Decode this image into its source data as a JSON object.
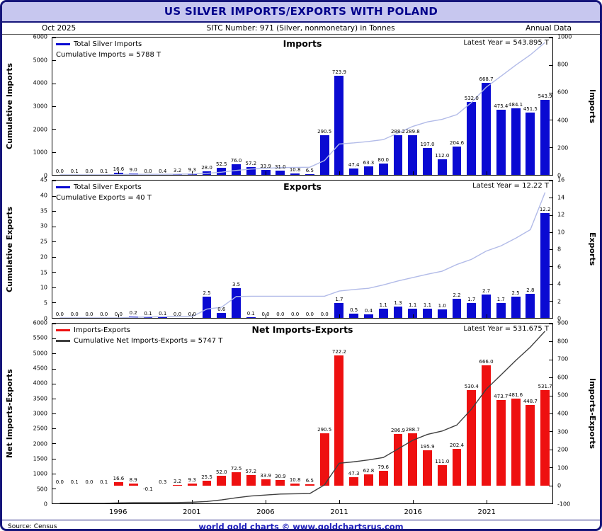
{
  "header": {
    "title": "US SILVER IMPORTS/EXPORTS WITH POLAND",
    "date_label": "Oct  2025",
    "sitc_label": "SITC Number: 971 (Silver, nonmonetary) in Tonnes",
    "frequency_label": "Annual Data"
  },
  "footer": {
    "source": "Source: Census",
    "credit": "world gold charts © www.goldchartsrus.com"
  },
  "colors": {
    "import_bar": "#0a0ad2",
    "net_bar": "#ee1010",
    "cumulative_light_line": "#b2bbe8",
    "cumulative_dark_line": "#3f3f3f",
    "title_bg": "#c7c7ef",
    "title_fg": "#00008b",
    "frame_border": "#15157a",
    "credit_fg": "#2121bd"
  },
  "years": [
    1992,
    1993,
    1994,
    1995,
    1996,
    1997,
    1998,
    1999,
    2000,
    2001,
    2002,
    2003,
    2004,
    2005,
    2006,
    2007,
    2008,
    2009,
    2010,
    2011,
    2012,
    2013,
    2014,
    2015,
    2016,
    2017,
    2018,
    2019,
    2020,
    2021,
    2022,
    2023,
    2024,
    2025
  ],
  "x_ticks": [
    1996,
    2001,
    2006,
    2011,
    2016,
    2021
  ],
  "chart_data": [
    {
      "type": "bar",
      "panel_title": "Imports",
      "latest_label": "Latest Year = 543.895 T",
      "legend_rows": [
        {
          "color": "#0a0ad2",
          "label": "Total Silver Imports"
        },
        {
          "color": null,
          "label": "Cumulative Imports = 5788 T"
        }
      ],
      "left_axis": {
        "label": "Cumulative Imports",
        "min": 0,
        "max": 6000,
        "step": 1000
      },
      "right_axis": {
        "label": "Imports",
        "min": 0,
        "max": 1000,
        "step": 200
      },
      "bar_color": "#0a0ad2",
      "line_color": "#b2bbe8",
      "values": [
        0.0,
        0.1,
        0.0,
        0.1,
        16.6,
        9.0,
        0.0,
        0.4,
        3.2,
        9.3,
        28.0,
        52.5,
        76.0,
        57.2,
        33.9,
        31.0,
        10.8,
        6.5,
        290.5,
        723.9,
        47.4,
        63.3,
        80.0,
        288.2,
        289.8,
        197.0,
        112.0,
        204.6,
        532.0,
        668.7,
        475.4,
        484.1,
        451.5,
        543.9
      ]
    },
    {
      "type": "bar",
      "panel_title": "Exports",
      "latest_label": "Latest Year = 12.22 T",
      "legend_rows": [
        {
          "color": "#0a0ad2",
          "label": "Total Silver Exports"
        },
        {
          "color": null,
          "label": "Cumulative Exports = 40 T"
        }
      ],
      "left_axis": {
        "label": "Cumulative Exports",
        "min": 0,
        "max": 45,
        "step": 5
      },
      "right_axis": {
        "label": "Exports",
        "min": 0,
        "max": 16,
        "step": 2
      },
      "bar_color": "#0a0ad2",
      "line_color": "#b2bbe8",
      "values": [
        0.0,
        0.0,
        0.0,
        0.0,
        0.0,
        0.2,
        0.1,
        0.1,
        0.0,
        0.0,
        2.5,
        0.6,
        3.5,
        0.1,
        0.0,
        0.0,
        0.0,
        0.0,
        0.0,
        1.7,
        0.5,
        0.4,
        1.1,
        1.3,
        1.1,
        1.1,
        1.0,
        2.2,
        1.7,
        2.7,
        1.7,
        2.5,
        2.8,
        12.2
      ]
    },
    {
      "type": "bar",
      "panel_title": "Net Imports-Exports",
      "latest_label": "Latest Year = 531.675 T",
      "legend_rows": [
        {
          "color": "#ee1010",
          "label": "Imports-Exports"
        },
        {
          "color": "#3f3f3f",
          "label": "Cumulative Net Imports-Exports = 5747 T"
        }
      ],
      "left_axis": {
        "label": "Net Imports-Exports",
        "min": 0,
        "max": 6000,
        "step": 500
      },
      "right_axis": {
        "label": "Imports-Exports",
        "min": -100,
        "max": 900,
        "step": 100
      },
      "bar_color": "#ee1010",
      "line_color": "#3f3f3f",
      "values": [
        0.0,
        0.1,
        0.0,
        0.1,
        16.6,
        8.9,
        -0.1,
        0.3,
        3.2,
        9.3,
        25.5,
        52.0,
        72.5,
        57.2,
        33.9,
        30.9,
        10.8,
        6.5,
        290.5,
        722.2,
        47.3,
        62.8,
        79.6,
        286.9,
        288.7,
        195.9,
        111.0,
        202.4,
        530.4,
        666.0,
        473.7,
        481.6,
        448.7,
        531.7
      ]
    }
  ]
}
